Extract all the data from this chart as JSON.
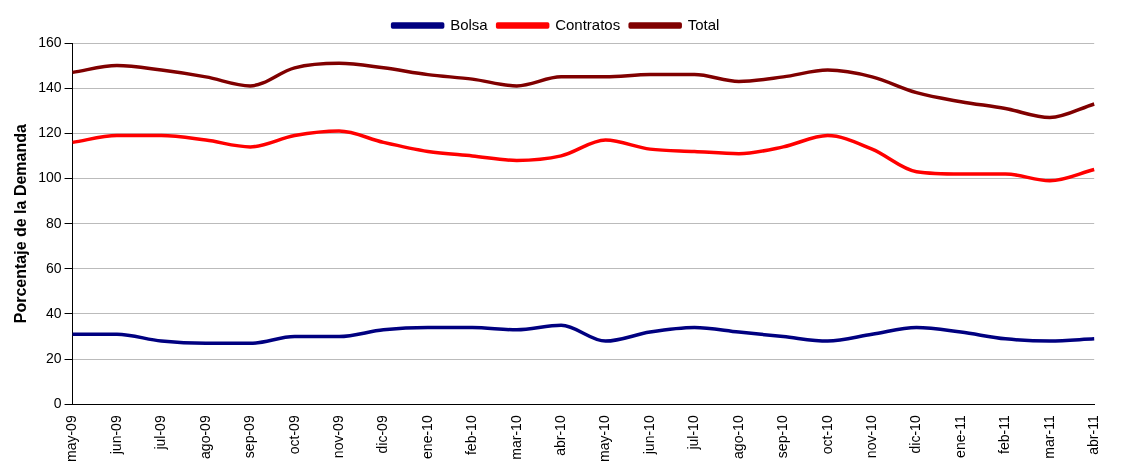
{
  "chart_data": {
    "type": "line",
    "ylabel": "Porcentaje de la Demanda",
    "categories": [
      "may-09",
      "jun-09",
      "jul-09",
      "ago-09",
      "sep-09",
      "oct-09",
      "nov-09",
      "dic-09",
      "ene-10",
      "feb-10",
      "mar-10",
      "abr-10",
      "may-10",
      "jun-10",
      "jul-10",
      "ago-10",
      "sep-10",
      "oct-10",
      "nov-10",
      "dic-10",
      "ene-11",
      "feb-11",
      "mar-11",
      "abr-11"
    ],
    "series": [
      {
        "name": "Bolsa",
        "color": "#000080",
        "values": [
          31,
          31,
          28,
          27,
          27,
          30,
          30,
          33,
          34,
          34,
          33,
          35,
          28,
          32,
          34,
          32,
          30,
          28,
          31,
          34,
          32,
          29,
          28,
          29
        ]
      },
      {
        "name": "Contratos",
        "color": "#ff0000",
        "values": [
          116,
          119,
          119,
          117,
          114,
          119,
          121,
          116,
          112,
          110,
          108,
          110,
          117,
          113,
          112,
          111,
          114,
          119,
          113,
          103,
          102,
          102,
          99,
          104
        ]
      },
      {
        "name": "Total",
        "color": "#800000",
        "values": [
          147,
          150,
          148,
          145,
          141,
          149,
          151,
          149,
          146,
          144,
          141,
          145,
          145,
          146,
          146,
          143,
          145,
          148,
          145,
          138,
          134,
          131,
          127,
          133
        ]
      }
    ],
    "ylim": [
      0,
      160
    ],
    "yticks": [
      0,
      20,
      40,
      60,
      80,
      100,
      120,
      140,
      160
    ],
    "grid": "y",
    "legend": "top",
    "marker": "none",
    "line_style": "solid"
  }
}
